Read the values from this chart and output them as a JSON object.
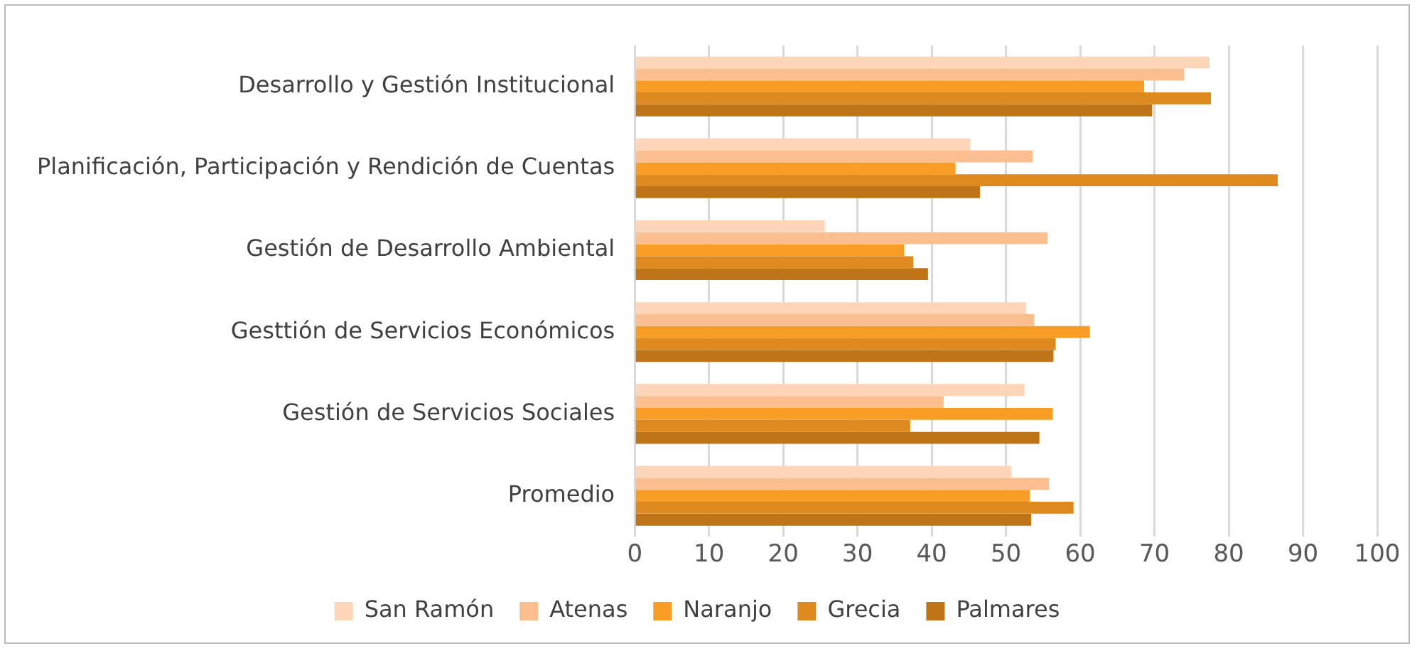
{
  "chart_data": {
    "type": "bar",
    "orientation": "horizontal",
    "categories": [
      "Desarrollo y Gestión Institucional",
      "Planificación, Participación y Rendición de Cuentas",
      "Gestión de Desarrollo Ambiental",
      "Gesttión de Servicios Económicos",
      "Gestión de Servicios Sociales",
      "Promedio"
    ],
    "series": [
      {
        "name": "San Ramón",
        "color": "#fdd5b8",
        "values": [
          77.4,
          45.2,
          25.6,
          52.7,
          52.5,
          50.7
        ]
      },
      {
        "name": "Atenas",
        "color": "#fbbe8e",
        "values": [
          74.0,
          53.6,
          55.6,
          53.8,
          41.6,
          55.8
        ]
      },
      {
        "name": "Naranjo",
        "color": "#f79d26",
        "values": [
          68.6,
          43.2,
          36.3,
          61.3,
          56.3,
          53.2
        ]
      },
      {
        "name": "Grecia",
        "color": "#de8a1f",
        "values": [
          77.6,
          86.6,
          37.5,
          56.7,
          37.1,
          59.1
        ]
      },
      {
        "name": "Palmares",
        "color": "#bf7417",
        "values": [
          69.7,
          46.5,
          39.5,
          56.4,
          54.5,
          53.4
        ]
      }
    ],
    "xlim": [
      0,
      100
    ],
    "xticks": [
      0,
      10,
      20,
      30,
      40,
      50,
      60,
      70,
      80,
      90,
      100
    ],
    "grid": "x",
    "legend": "bottom"
  }
}
